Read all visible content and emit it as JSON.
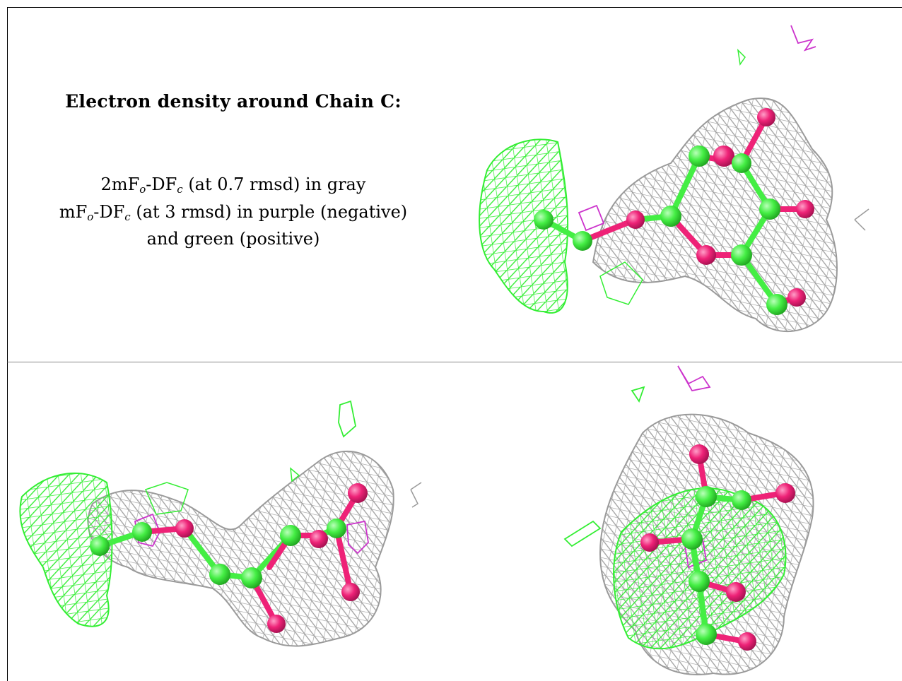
{
  "caption": {
    "title": "Electron density around Chain C:",
    "line1_a": "2mF",
    "line1_sub1": "o",
    "line1_b": "-DF",
    "line1_sub2": "c",
    "line1_c": " (at 0.7 rmsd) in gray",
    "line2_a": "mF",
    "line2_sub1": "o",
    "line2_b": "-DF",
    "line2_sub2": "c",
    "line2_c": " (at 3 rmsd) in purple (negative)",
    "line3": "and green (positive)"
  },
  "colors": {
    "mesh_2fofc": "#9a9a9a",
    "mesh_positive": "#33ee33",
    "mesh_negative": "#cc33cc",
    "atom_carbon": "#44ee44",
    "atom_oxygen": "#ee2277"
  },
  "panels": [
    "view-top-right",
    "view-bottom-left",
    "view-bottom-right"
  ]
}
